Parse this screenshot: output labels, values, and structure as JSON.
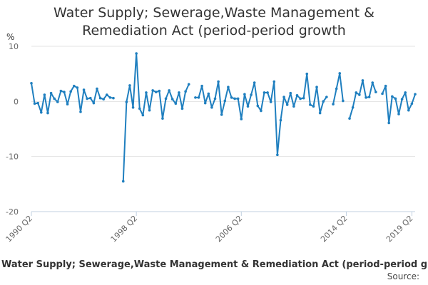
{
  "chart_data": {
    "type": "line",
    "title_lines": [
      "Water Supply; Sewerage,Waste Management &",
      "Remediation Act (period-period growth"
    ],
    "ylabel": "%",
    "ylim": [
      -20,
      12
    ],
    "yticks": [
      -20,
      -10,
      0,
      10
    ],
    "grid": true,
    "x_tick_labels": [
      "1990 Q2",
      "1998 Q2",
      "2006 Q2",
      "2014 Q2",
      "2019 Q2"
    ],
    "x_tick_quarter_index": [
      0,
      32,
      64,
      96,
      116
    ],
    "series": [
      {
        "name": "Water Supply; Sewerage,Waste Management & Remediation Act (period-period growth",
        "color": "#1f7fbf",
        "values": [
          3.3,
          -0.4,
          -0.3,
          -2.0,
          1.2,
          -2.1,
          1.5,
          0.5,
          -0.1,
          1.9,
          1.7,
          -0.5,
          1.8,
          2.8,
          2.5,
          -1.9,
          2.1,
          0.5,
          0.6,
          -0.3,
          2.3,
          0.6,
          0.4,
          1.2,
          0.7,
          0.6,
          null,
          null,
          -14.5,
          -0.1,
          2.9,
          -1.1,
          8.7,
          -1.3,
          -2.5,
          1.6,
          -1.6,
          2.0,
          1.7,
          1.9,
          -3.1,
          0.5,
          2.0,
          0.4,
          -0.4,
          1.6,
          -1.3,
          1.8,
          3.1,
          null,
          0.7,
          0.7,
          2.8,
          -0.3,
          1.4,
          -1.1,
          0.5,
          3.6,
          -2.4,
          0.1,
          2.6,
          0.7,
          0.5,
          0.5,
          -3.2,
          1.3,
          -0.9,
          1.2,
          3.4,
          -0.8,
          -1.7,
          1.6,
          1.6,
          -0.1,
          3.6,
          -9.7,
          -3.4,
          0.8,
          -0.6,
          1.5,
          -0.9,
          1.1,
          0.5,
          0.6,
          5.0,
          -0.6,
          -0.9,
          2.6,
          -2.1,
          0.0,
          0.8,
          null,
          -0.5,
          2.3,
          5.1,
          0.1,
          null,
          -3.1,
          -1.1,
          1.6,
          1.2,
          3.8,
          0.7,
          0.8,
          3.4,
          1.7,
          null,
          1.4,
          2.8,
          -3.9,
          0.9,
          0.5,
          -2.3,
          0.4,
          1.6,
          -1.6,
          -0.4,
          1.3
        ]
      }
    ]
  },
  "source_text": "Source:",
  "colors": {
    "line": "#1f7fbf",
    "grid": "#e3e3e3",
    "axis": "#c0d0e0"
  }
}
